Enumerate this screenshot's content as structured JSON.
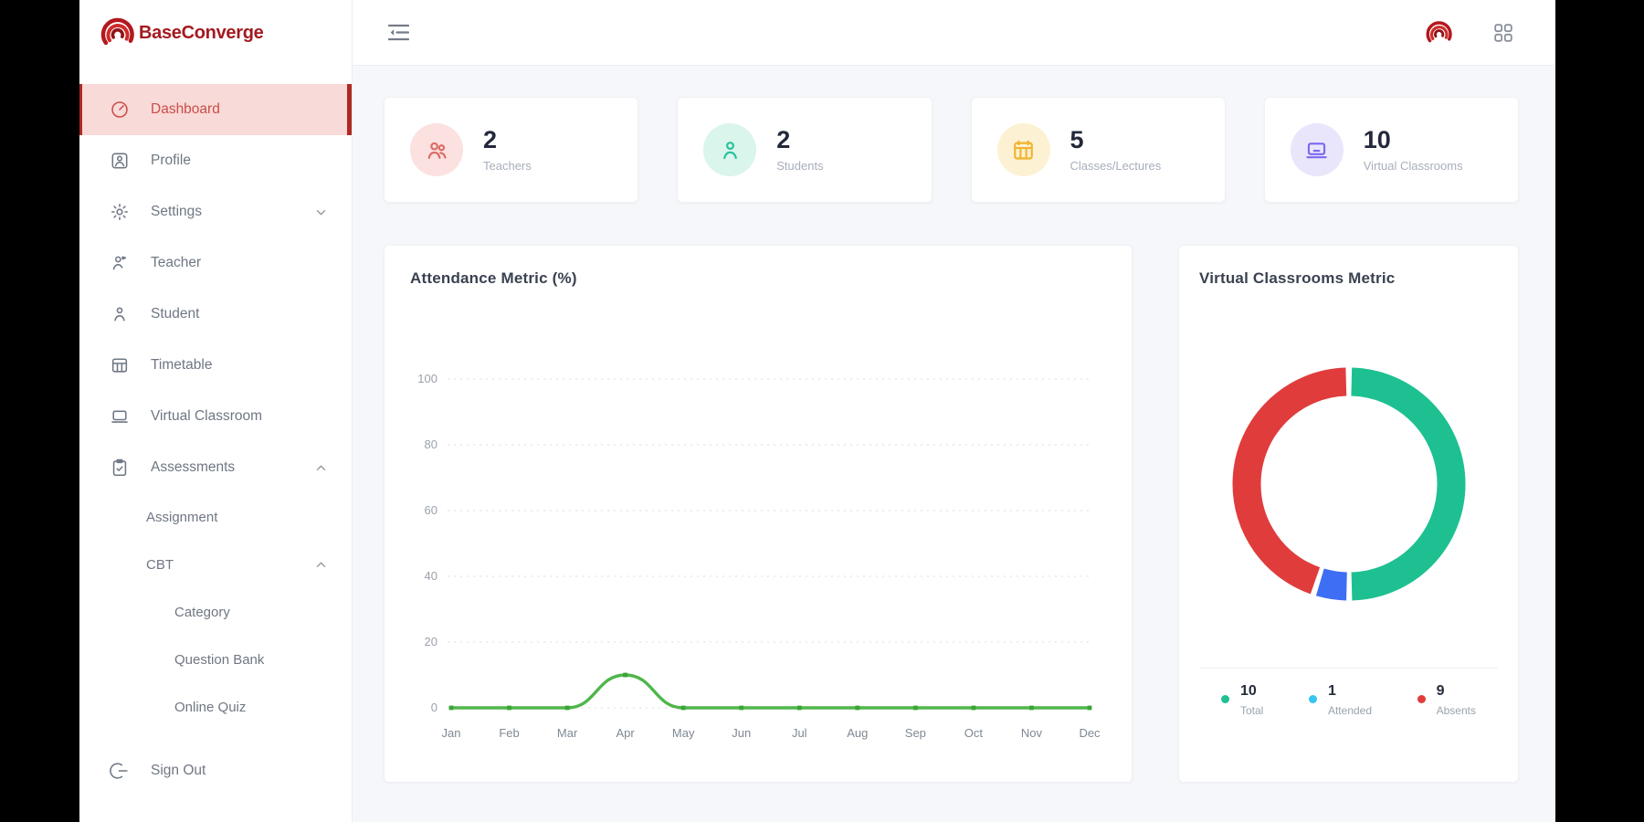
{
  "brand": {
    "name": "BaseConverge"
  },
  "sidebar": {
    "items": [
      {
        "label": "Dashboard",
        "icon": "speedometer-icon",
        "active": true
      },
      {
        "label": "Profile",
        "icon": "profile-icon"
      },
      {
        "label": "Settings",
        "icon": "gear-icon",
        "chevron": "down"
      },
      {
        "label": "Teacher",
        "icon": "teacher-icon"
      },
      {
        "label": "Student",
        "icon": "student-icon"
      },
      {
        "label": "Timetable",
        "icon": "timetable-icon"
      },
      {
        "label": "Virtual Classroom",
        "icon": "laptop-icon"
      },
      {
        "label": "Assessments",
        "icon": "assessments-icon",
        "chevron": "up"
      },
      {
        "label": "Assignment",
        "level": 1
      },
      {
        "label": "CBT",
        "level": 1,
        "chevron": "up"
      },
      {
        "label": "Category",
        "level": 2
      },
      {
        "label": "Question Bank",
        "level": 2
      },
      {
        "label": "Online Quiz",
        "level": 2
      },
      {
        "label": "Sign Out",
        "icon": "signout-icon"
      }
    ]
  },
  "header": {
    "menu_toggle_icon": "sidebar-fold-icon",
    "apps_icon": "apps-grid-icon",
    "logo_icon": "brand-swirl-icon"
  },
  "stats": [
    {
      "value": "2",
      "label": "Teachers",
      "icon": "teachers-icon",
      "accent": "#dc6a64",
      "bg": "#fbe1df"
    },
    {
      "value": "2",
      "label": "Students",
      "icon": "student-badge-icon",
      "accent": "#27c29a",
      "bg": "#d9f5ec"
    },
    {
      "value": "5",
      "label": "Classes/Lectures",
      "icon": "calendar-icon",
      "accent": "#f0b42e",
      "bg": "#fdf1d3"
    },
    {
      "value": "10",
      "label": "Virtual Classrooms",
      "icon": "virtual-classroom-icon",
      "accent": "#7a68ef",
      "bg": "#e9e6fc"
    }
  ],
  "chart_data": [
    {
      "type": "line",
      "title": "Attendance Metric (%)",
      "x": [
        "Jan",
        "Feb",
        "Mar",
        "Apr",
        "May",
        "Jun",
        "Jul",
        "Aug",
        "Sep",
        "Oct",
        "Nov",
        "Dec"
      ],
      "series": [
        {
          "name": "Attendance",
          "values": [
            0,
            0,
            0,
            10,
            0,
            0,
            0,
            0,
            0,
            0,
            0,
            0
          ],
          "color": "#4fb64a",
          "marker_color": "#3aa436"
        }
      ],
      "ylim": [
        0,
        100
      ],
      "yticks": [
        0,
        20,
        40,
        60,
        80,
        100
      ],
      "grid": "dashed-horizontal",
      "legend_position": "none"
    },
    {
      "type": "pie",
      "style": "donut",
      "title": "Virtual Classrooms Metric",
      "start": "top",
      "direction": "clockwise",
      "slices": [
        {
          "label": "Total",
          "value": 10,
          "color": "#1ec092"
        },
        {
          "label": "Attended",
          "value": 1,
          "color": "#3d6ef3"
        },
        {
          "label": "Absents",
          "value": 9,
          "color": "#e03c3c"
        }
      ],
      "legend": [
        {
          "value": "10",
          "label": "Total",
          "dot": "#1ec092"
        },
        {
          "value": "1",
          "label": "Attended",
          "dot": "#38c5f0"
        },
        {
          "value": "9",
          "label": "Absents",
          "dot": "#e23b3b"
        }
      ],
      "legend_position": "bottom"
    }
  ]
}
